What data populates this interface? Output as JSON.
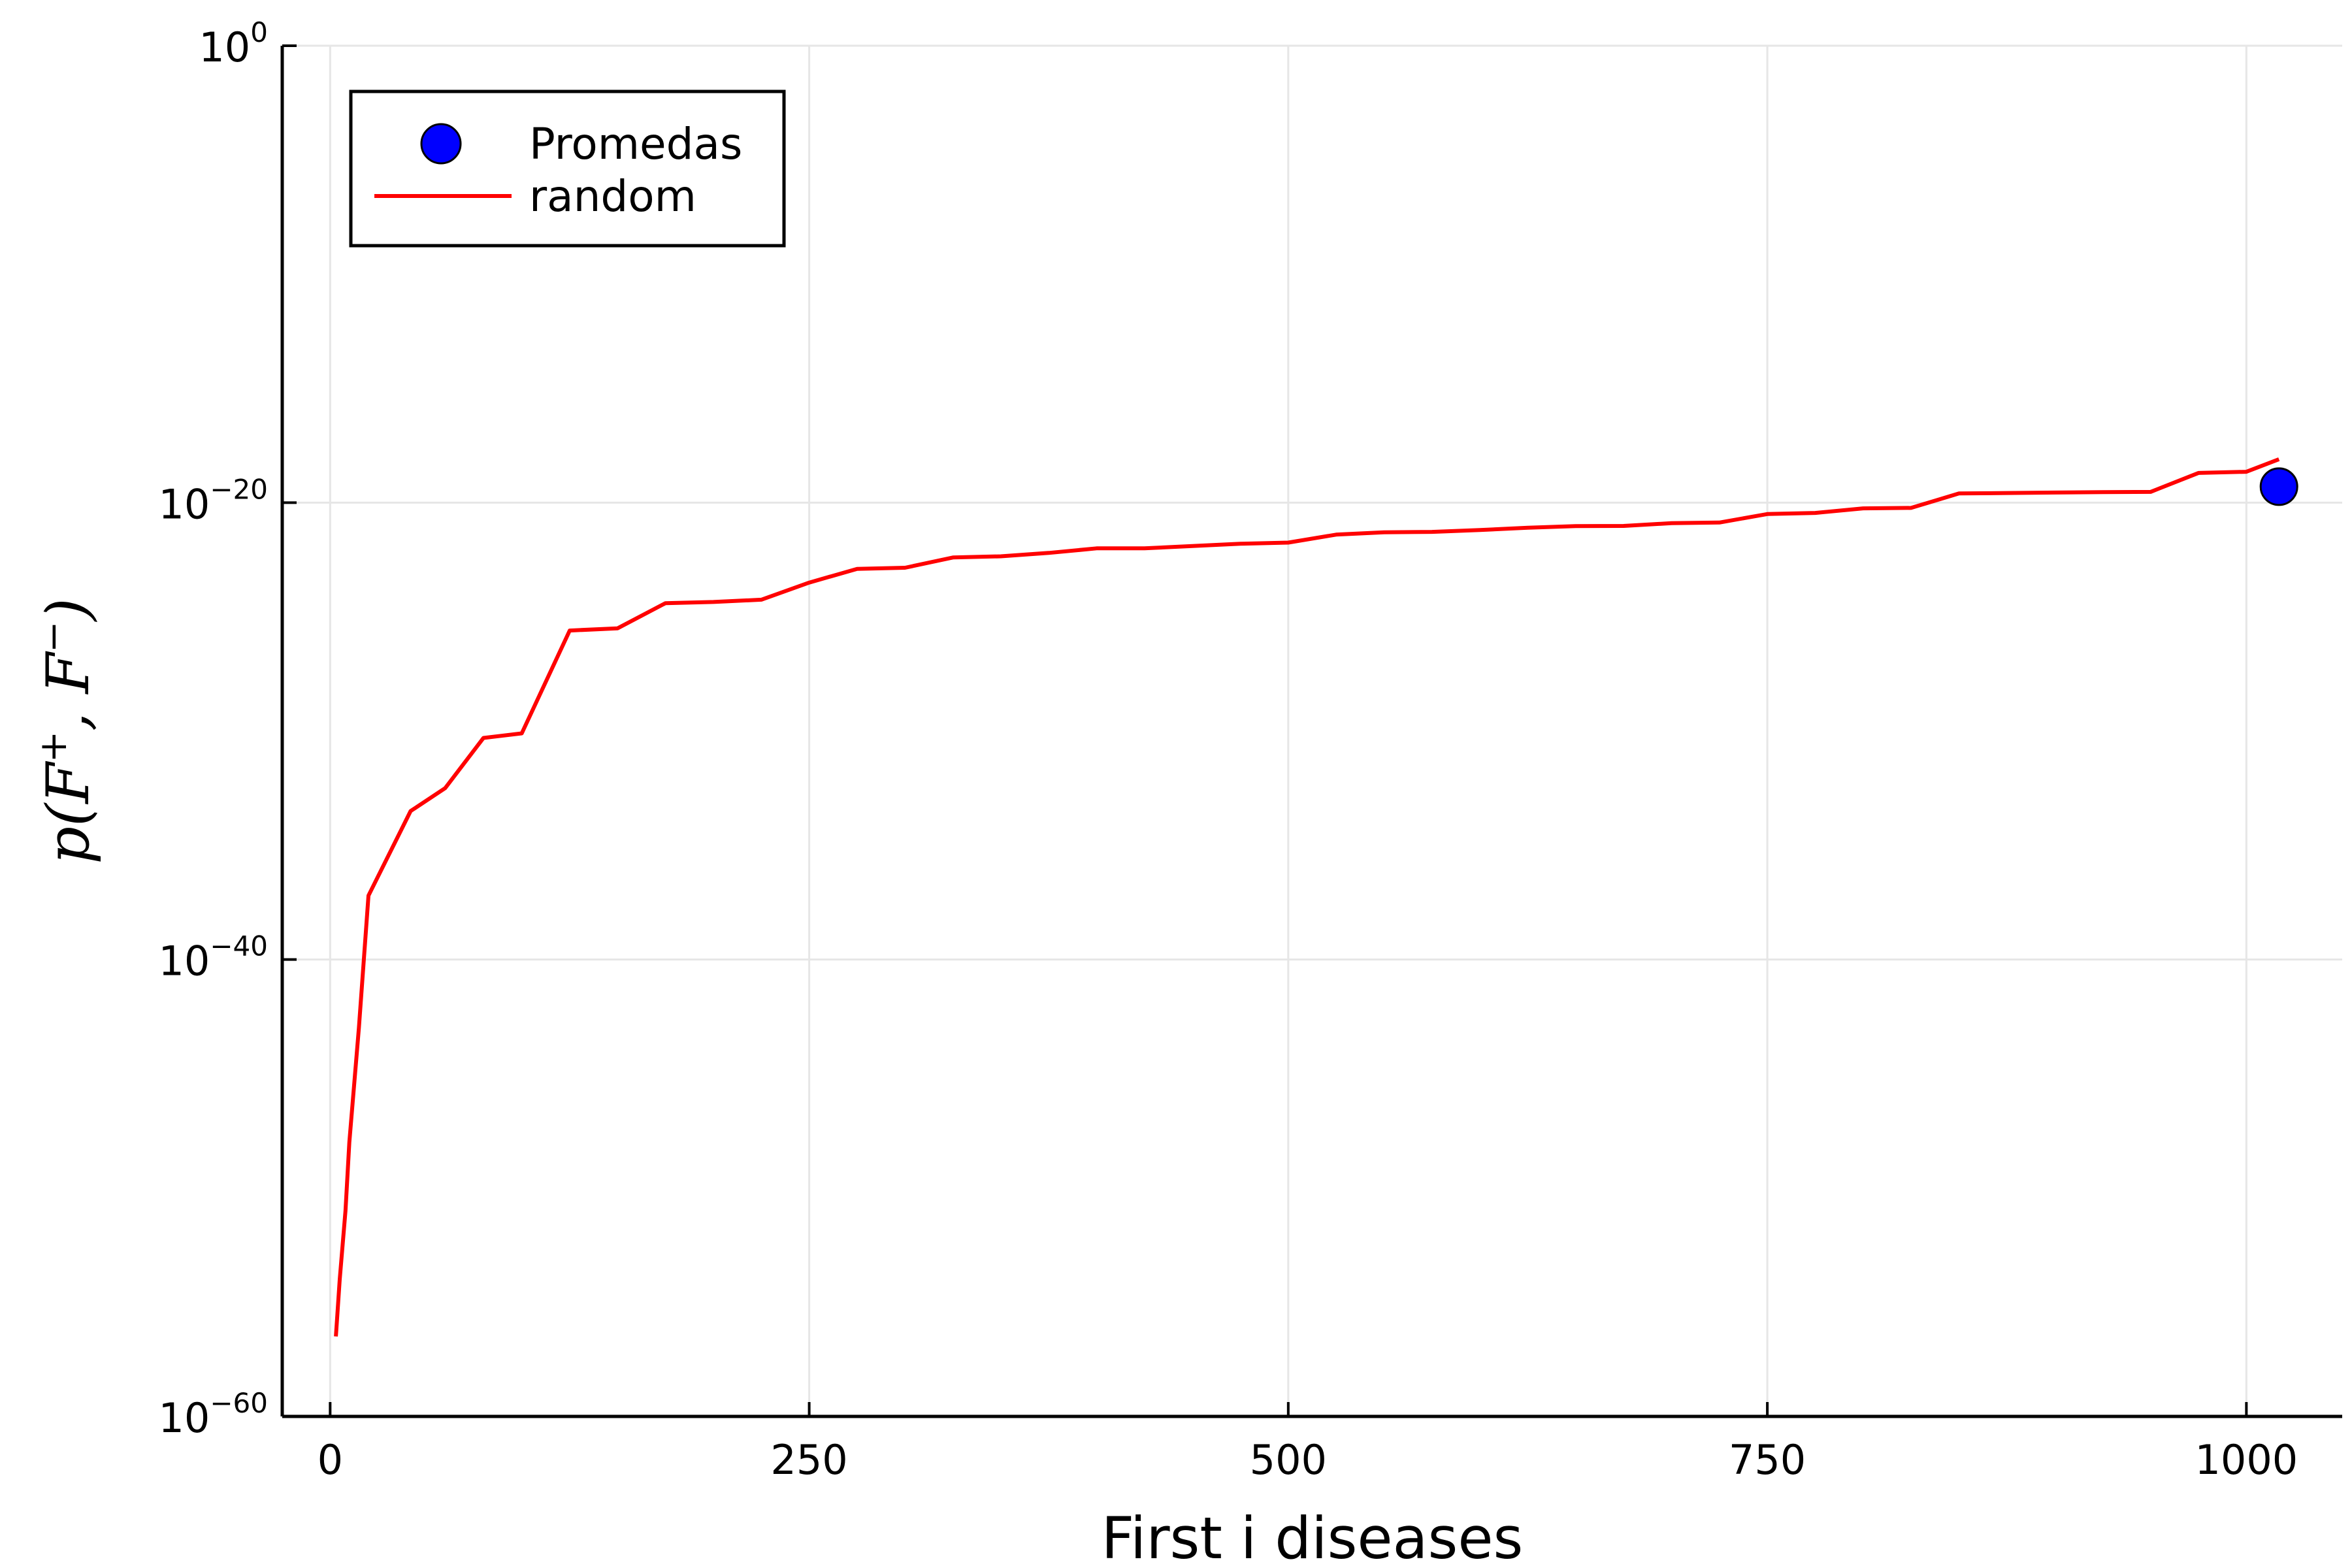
{
  "chart_data": {
    "type": "line",
    "title": "",
    "xlabel": "First i diseases",
    "ylabel": {
      "base": "p(F",
      "sup1": "+",
      "mid": ", F",
      "sup2": "−",
      "end": ")"
    },
    "xlim": [
      -25,
      1050
    ],
    "ylim_log10": [
      -60,
      0
    ],
    "y_scale": "log",
    "grid": true,
    "legend_position": "top-left",
    "x_ticks": [
      {
        "value": 0,
        "label": "0"
      },
      {
        "value": 250,
        "label": "250"
      },
      {
        "value": 500,
        "label": "500"
      },
      {
        "value": 750,
        "label": "750"
      },
      {
        "value": 1000,
        "label": "1000"
      }
    ],
    "y_ticks": [
      {
        "value": 0,
        "base": "10",
        "exp": "0"
      },
      {
        "value": -20,
        "base": "10",
        "exp": "−20"
      },
      {
        "value": -40,
        "base": "10",
        "exp": "−40"
      },
      {
        "value": -60,
        "base": "10",
        "exp": "−60"
      }
    ],
    "series": [
      {
        "name": "random",
        "kind": "line",
        "color": "#ff0000",
        "x": [
          3,
          5,
          8,
          10,
          15,
          20,
          42,
          60,
          80,
          100,
          125,
          150,
          175,
          200,
          225,
          250,
          275,
          300,
          325,
          350,
          375,
          400,
          425,
          450,
          475,
          500,
          525,
          550,
          575,
          600,
          625,
          650,
          675,
          700,
          725,
          750,
          775,
          800,
          825,
          850,
          875,
          900,
          925,
          950,
          975,
          1000,
          1017
        ],
        "y_log10": [
          -56.5,
          -54,
          -51,
          -48,
          -43,
          -37.2,
          -33.5,
          -32.5,
          -30.3,
          -30.1,
          -25.6,
          -25.5,
          -24.4,
          -24.35,
          -24.25,
          -23.5,
          -22.9,
          -22.85,
          -22.4,
          -22.35,
          -22.2,
          -22,
          -22,
          -21.9,
          -21.8,
          -21.75,
          -21.4,
          -21.3,
          -21.28,
          -21.2,
          -21.1,
          -21.03,
          -21.02,
          -20.9,
          -20.87,
          -20.5,
          -20.45,
          -20.25,
          -20.23,
          -19.6,
          -19.58,
          -19.56,
          -19.54,
          -19.53,
          -18.7,
          -18.65,
          -18.1
        ]
      },
      {
        "name": "Promedas",
        "kind": "scatter",
        "color": "#0000ff",
        "x": [
          1017
        ],
        "y_log10": [
          -19.3
        ]
      }
    ]
  }
}
